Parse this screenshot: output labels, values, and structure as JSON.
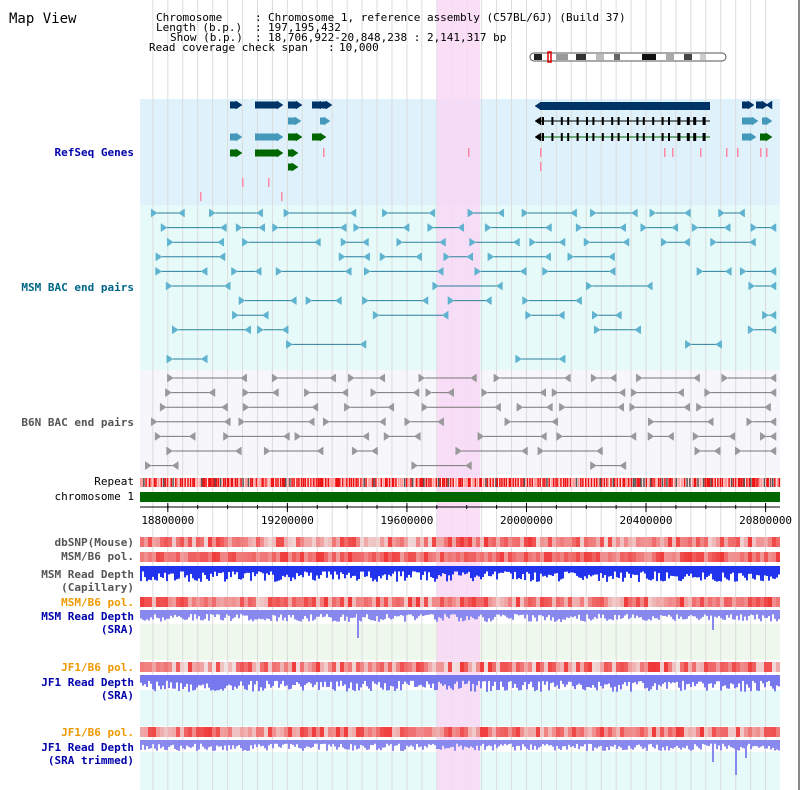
{
  "title": "Map View",
  "info": {
    "lines": [
      {
        "label": "Chromosome",
        "value": "Chromosome 1, reference assembly (C57BL/6J) (Build 37)"
      },
      {
        "label": "Length (b.p.)",
        "value": "197,195,432"
      },
      {
        "label": "Show (b.p.)",
        "value": "18,706,922-20,848,238 : 2,141,317 bp"
      },
      {
        "label": "Read coverage check span",
        "value": "10,000"
      }
    ]
  },
  "tracks": {
    "refseq": {
      "label": "RefSeq Genes",
      "color": "#0000aa"
    },
    "msm_bac": {
      "label": "MSM BAC end pairs",
      "color": "#006688"
    },
    "b6n_bac": {
      "label": "B6N BAC end pairs",
      "color": "#555555"
    },
    "repeat": {
      "label": "Repeat"
    },
    "chromosome": {
      "label": "chromosome 1"
    },
    "dbsnp": {
      "label": "dbSNP(Mouse)"
    },
    "msm_b6_pol_1": {
      "label": "MSM/B6 pol."
    },
    "msm_read_depth_cap": {
      "label1": "MSM Read Depth",
      "label2": "(Capillary)"
    },
    "msm_b6_pol_2": {
      "label": "MSM/B6 pol."
    },
    "msm_read_depth_sra": {
      "label1": "MSM Read Depth",
      "label2": "(SRA)"
    },
    "jf1_b6_pol_1": {
      "label": "JF1/B6 pol."
    },
    "jf1_read_depth_sra": {
      "label1": "JF1 Read Depth",
      "label2": "(SRA)"
    },
    "jf1_b6_pol_2": {
      "label": "JF1/B6 pol."
    },
    "jf1_read_depth_trim": {
      "label1": "JF1 Read Depth",
      "label2": "(SRA trimmed)"
    }
  },
  "axis": {
    "start": 18706922,
    "end": 20848238,
    "ticks": [
      {
        "value": 18800000,
        "label": "18800000"
      },
      {
        "value": 19200000,
        "label": "19200000"
      },
      {
        "value": 19600000,
        "label": "19600000"
      },
      {
        "value": 20000000,
        "label": "20000000"
      },
      {
        "value": 20400000,
        "label": "20400000"
      },
      {
        "value": 20800000,
        "label": "20800000"
      }
    ]
  },
  "highlight": {
    "start": 19700000,
    "end": 19845000,
    "color": "#f8d8f4"
  },
  "colors": {
    "label_blue": "#0000aa",
    "label_teal": "#006688",
    "label_gray": "#555555",
    "label_orange": "#ee9900",
    "gene_dark": "#003366",
    "gene_mid": "#4499bb",
    "gene_green": "#006600",
    "refseq_bg": "#dff2fb",
    "msm_bg": "#e6fafa",
    "b6n_bg": "#f6f6fb",
    "chrom_green": "#006600"
  }
}
